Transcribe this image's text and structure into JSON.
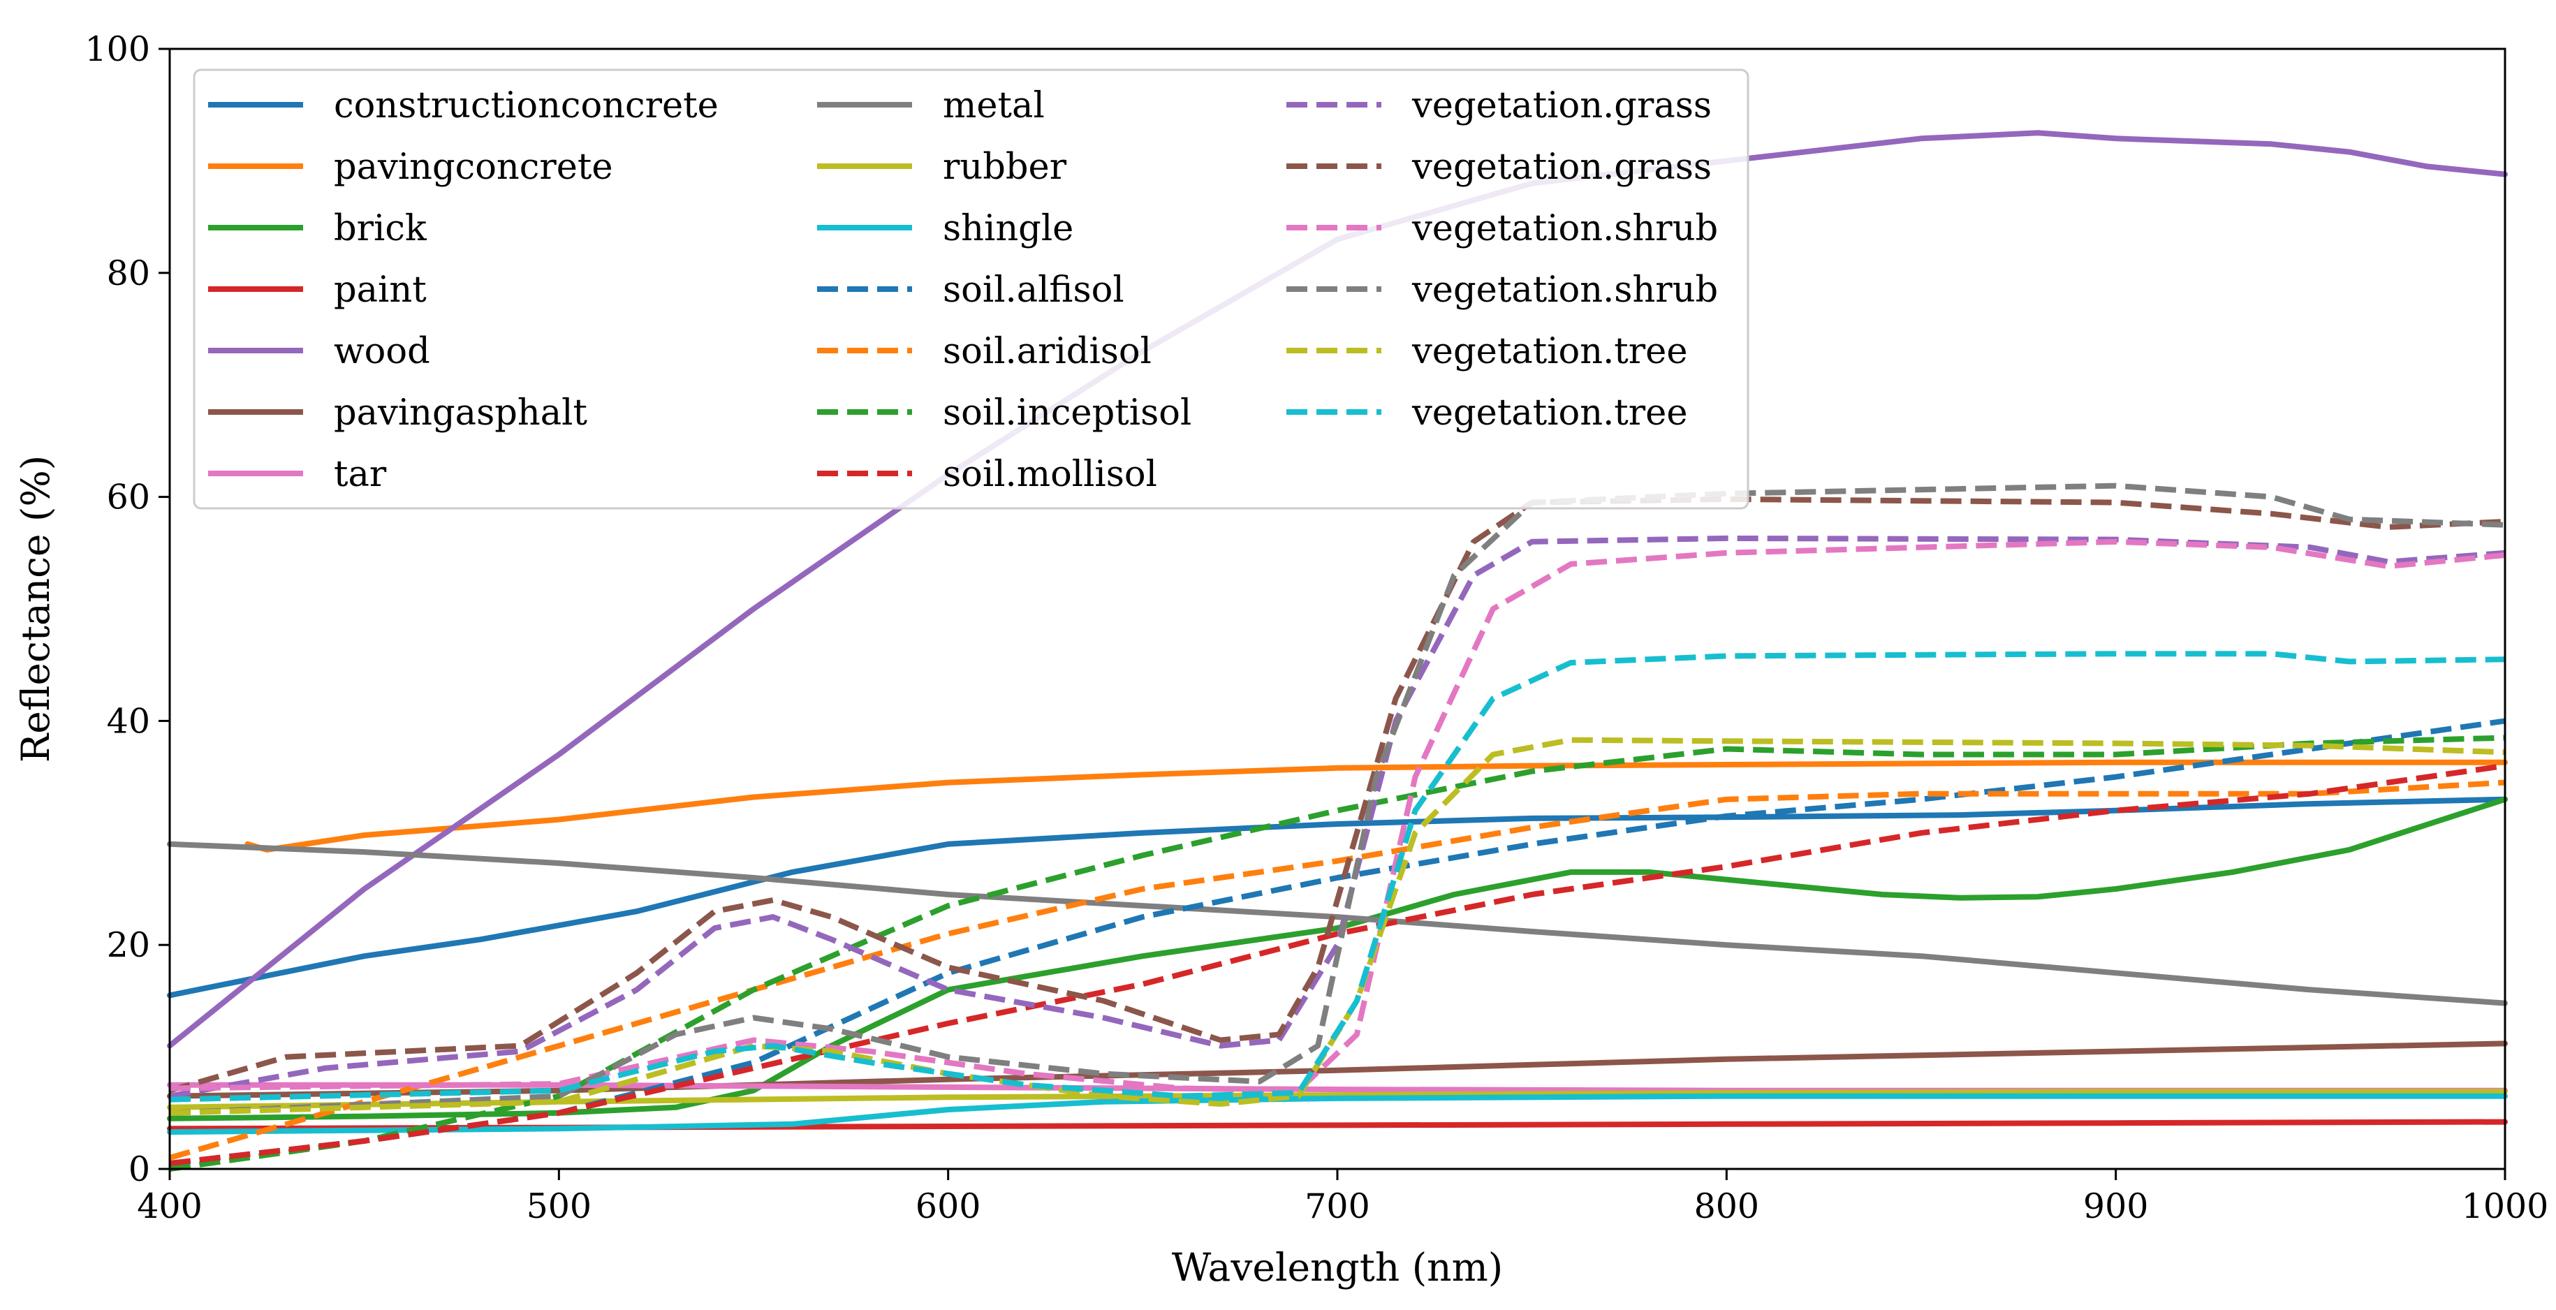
{
  "chart_data": {
    "type": "line",
    "title": "",
    "xlabel": "Wavelength (nm)",
    "ylabel": "Reflectance (%)",
    "xlim": [
      400,
      1000
    ],
    "ylim": [
      0,
      100
    ],
    "xticks": [
      400,
      500,
      600,
      700,
      800,
      900,
      1000
    ],
    "yticks": [
      0,
      20,
      40,
      60,
      80,
      100
    ],
    "grid": false,
    "legend_position": "top-left",
    "legend_columns": 3,
    "series": [
      {
        "name": "constructionconcrete",
        "color": "#1f77b4",
        "style": "solid",
        "points": [
          [
            400,
            15.5
          ],
          [
            450,
            19
          ],
          [
            480,
            20.5
          ],
          [
            520,
            23
          ],
          [
            560,
            26.5
          ],
          [
            600,
            29
          ],
          [
            650,
            30
          ],
          [
            700,
            30.8
          ],
          [
            750,
            31.3
          ],
          [
            800,
            31.4
          ],
          [
            860,
            31.6
          ],
          [
            900,
            32
          ],
          [
            950,
            32.6
          ],
          [
            1000,
            33
          ]
        ]
      },
      {
        "name": "pavingconcrete",
        "color": "#ff7f0e",
        "style": "solid",
        "points": [
          [
            420,
            29
          ],
          [
            425,
            28.5
          ],
          [
            450,
            29.8
          ],
          [
            500,
            31.2
          ],
          [
            550,
            33.2
          ],
          [
            600,
            34.5
          ],
          [
            650,
            35.2
          ],
          [
            700,
            35.8
          ],
          [
            750,
            36
          ],
          [
            800,
            36.1
          ],
          [
            900,
            36.3
          ],
          [
            1000,
            36.3
          ]
        ]
      },
      {
        "name": "brick",
        "color": "#2ca02c",
        "style": "solid",
        "points": [
          [
            400,
            4.5
          ],
          [
            450,
            4.7
          ],
          [
            500,
            5
          ],
          [
            530,
            5.5
          ],
          [
            550,
            7
          ],
          [
            570,
            11
          ],
          [
            600,
            16
          ],
          [
            650,
            19
          ],
          [
            700,
            21.5
          ],
          [
            730,
            24.5
          ],
          [
            760,
            26.5
          ],
          [
            780,
            26.5
          ],
          [
            810,
            25.5
          ],
          [
            840,
            24.5
          ],
          [
            860,
            24.2
          ],
          [
            880,
            24.3
          ],
          [
            900,
            25
          ],
          [
            930,
            26.5
          ],
          [
            960,
            28.5
          ],
          [
            1000,
            33
          ]
        ]
      },
      {
        "name": "paint",
        "color": "#d62728",
        "style": "solid",
        "points": [
          [
            400,
            3.6
          ],
          [
            500,
            3.7
          ],
          [
            600,
            3.8
          ],
          [
            700,
            3.9
          ],
          [
            800,
            4
          ],
          [
            900,
            4.1
          ],
          [
            1000,
            4.2
          ]
        ]
      },
      {
        "name": "wood",
        "color": "#9467bd",
        "style": "solid",
        "points": [
          [
            400,
            11
          ],
          [
            450,
            25
          ],
          [
            500,
            37
          ],
          [
            550,
            50
          ],
          [
            600,
            62
          ],
          [
            650,
            73
          ],
          [
            700,
            83
          ],
          [
            750,
            88
          ],
          [
            800,
            90
          ],
          [
            850,
            92
          ],
          [
            880,
            92.5
          ],
          [
            900,
            92
          ],
          [
            940,
            91.5
          ],
          [
            960,
            90.8
          ],
          [
            980,
            89.5
          ],
          [
            1000,
            88.8
          ]
        ]
      },
      {
        "name": "pavingasphalt",
        "color": "#8c564b",
        "style": "solid",
        "points": [
          [
            400,
            6.5
          ],
          [
            500,
            7
          ],
          [
            600,
            8
          ],
          [
            700,
            8.8
          ],
          [
            800,
            9.8
          ],
          [
            900,
            10.5
          ],
          [
            1000,
            11.2
          ]
        ]
      },
      {
        "name": "tar",
        "color": "#e377c2",
        "style": "solid",
        "points": [
          [
            400,
            7.5
          ],
          [
            500,
            7.5
          ],
          [
            600,
            7.3
          ],
          [
            700,
            7.1
          ],
          [
            800,
            7
          ],
          [
            900,
            7
          ],
          [
            1000,
            7
          ]
        ]
      },
      {
        "name": "metal",
        "color": "#7f7f7f",
        "style": "solid",
        "points": [
          [
            400,
            29
          ],
          [
            450,
            28.3
          ],
          [
            500,
            27.3
          ],
          [
            550,
            26
          ],
          [
            600,
            24.5
          ],
          [
            650,
            23.5
          ],
          [
            700,
            22.5
          ],
          [
            750,
            21.2
          ],
          [
            800,
            20
          ],
          [
            850,
            19
          ],
          [
            900,
            17.5
          ],
          [
            950,
            16
          ],
          [
            1000,
            14.8
          ]
        ]
      },
      {
        "name": "rubber",
        "color": "#bcbd22",
        "style": "solid",
        "points": [
          [
            400,
            5.5
          ],
          [
            500,
            6
          ],
          [
            600,
            6.4
          ],
          [
            700,
            6.6
          ],
          [
            800,
            6.8
          ],
          [
            900,
            6.9
          ],
          [
            1000,
            6.9
          ]
        ]
      },
      {
        "name": "shingle",
        "color": "#17becf",
        "style": "solid",
        "points": [
          [
            400,
            3.3
          ],
          [
            500,
            3.6
          ],
          [
            560,
            4
          ],
          [
            600,
            5.3
          ],
          [
            640,
            6
          ],
          [
            700,
            6.3
          ],
          [
            800,
            6.5
          ],
          [
            900,
            6.5
          ],
          [
            1000,
            6.5
          ]
        ]
      },
      {
        "name": "soil.alfisol",
        "color": "#1f77b4",
        "style": "dashed",
        "points": [
          [
            400,
            0.5
          ],
          [
            450,
            2.5
          ],
          [
            500,
            5
          ],
          [
            550,
            9.5
          ],
          [
            600,
            17.5
          ],
          [
            650,
            22.5
          ],
          [
            700,
            26
          ],
          [
            750,
            29
          ],
          [
            800,
            31.5
          ],
          [
            850,
            33
          ],
          [
            900,
            35
          ],
          [
            950,
            37.5
          ],
          [
            1000,
            40
          ]
        ]
      },
      {
        "name": "soil.aridisol",
        "color": "#ff7f0e",
        "style": "dashed",
        "points": [
          [
            400,
            1
          ],
          [
            450,
            6
          ],
          [
            500,
            11
          ],
          [
            550,
            16
          ],
          [
            600,
            21
          ],
          [
            650,
            25
          ],
          [
            700,
            27.5
          ],
          [
            750,
            30.5
          ],
          [
            800,
            33
          ],
          [
            850,
            33.5
          ],
          [
            900,
            33.5
          ],
          [
            950,
            33.5
          ],
          [
            1000,
            34.5
          ]
        ]
      },
      {
        "name": "soil.inceptisol",
        "color": "#2ca02c",
        "style": "dashed",
        "points": [
          [
            400,
            0
          ],
          [
            450,
            2.5
          ],
          [
            500,
            6.5
          ],
          [
            550,
            16
          ],
          [
            600,
            23.5
          ],
          [
            650,
            28
          ],
          [
            700,
            32
          ],
          [
            750,
            35.5
          ],
          [
            800,
            37.5
          ],
          [
            850,
            37
          ],
          [
            900,
            37
          ],
          [
            950,
            38
          ],
          [
            1000,
            38.5
          ]
        ]
      },
      {
        "name": "soil.mollisol",
        "color": "#d62728",
        "style": "dashed",
        "points": [
          [
            400,
            0.5
          ],
          [
            450,
            2.5
          ],
          [
            500,
            5
          ],
          [
            550,
            9
          ],
          [
            600,
            13
          ],
          [
            650,
            16.5
          ],
          [
            700,
            21
          ],
          [
            750,
            24.5
          ],
          [
            800,
            27
          ],
          [
            850,
            30
          ],
          [
            900,
            32
          ],
          [
            950,
            33.5
          ],
          [
            1000,
            36
          ]
        ]
      },
      {
        "name": "vegetation.grass",
        "color": "#9467bd",
        "style": "dashed",
        "points": [
          [
            400,
            6.5
          ],
          [
            440,
            9
          ],
          [
            490,
            10.5
          ],
          [
            520,
            16
          ],
          [
            540,
            21.5
          ],
          [
            555,
            22.5
          ],
          [
            570,
            20.5
          ],
          [
            600,
            16
          ],
          [
            640,
            13.5
          ],
          [
            670,
            11
          ],
          [
            685,
            11.5
          ],
          [
            700,
            20
          ],
          [
            715,
            40
          ],
          [
            735,
            53
          ],
          [
            750,
            56
          ],
          [
            800,
            56.3
          ],
          [
            900,
            56.2
          ],
          [
            950,
            55.5
          ],
          [
            970,
            54.2
          ],
          [
            1000,
            55
          ]
        ]
      },
      {
        "name": "vegetation.grass",
        "color": "#8c564b",
        "style": "dashed",
        "points": [
          [
            400,
            7
          ],
          [
            430,
            10
          ],
          [
            490,
            11
          ],
          [
            520,
            17.5
          ],
          [
            540,
            23
          ],
          [
            555,
            24
          ],
          [
            570,
            22.5
          ],
          [
            600,
            18
          ],
          [
            640,
            15
          ],
          [
            670,
            11.5
          ],
          [
            685,
            12
          ],
          [
            695,
            18
          ],
          [
            715,
            42
          ],
          [
            735,
            56
          ],
          [
            750,
            59.5
          ],
          [
            800,
            59.8
          ],
          [
            900,
            59.5
          ],
          [
            940,
            58.5
          ],
          [
            970,
            57.3
          ],
          [
            1000,
            57.8
          ]
        ]
      },
      {
        "name": "vegetation.shrub",
        "color": "#e377c2",
        "style": "dashed",
        "points": [
          [
            400,
            7.2
          ],
          [
            500,
            7.6
          ],
          [
            550,
            11.5
          ],
          [
            580,
            10.5
          ],
          [
            620,
            8.5
          ],
          [
            660,
            7.2
          ],
          [
            690,
            7
          ],
          [
            705,
            12
          ],
          [
            720,
            35
          ],
          [
            740,
            50
          ],
          [
            760,
            54
          ],
          [
            800,
            55
          ],
          [
            900,
            56
          ],
          [
            940,
            55.5
          ],
          [
            970,
            53.8
          ],
          [
            1000,
            54.8
          ]
        ]
      },
      {
        "name": "vegetation.shrub",
        "color": "#7f7f7f",
        "style": "dashed",
        "points": [
          [
            400,
            5
          ],
          [
            500,
            6.5
          ],
          [
            530,
            12
          ],
          [
            550,
            13.5
          ],
          [
            570,
            12.5
          ],
          [
            600,
            10
          ],
          [
            640,
            8.5
          ],
          [
            680,
            7.8
          ],
          [
            695,
            11
          ],
          [
            710,
            35
          ],
          [
            730,
            53
          ],
          [
            750,
            59.5
          ],
          [
            800,
            60.3
          ],
          [
            900,
            61
          ],
          [
            940,
            60
          ],
          [
            960,
            58
          ],
          [
            1000,
            57.5
          ]
        ]
      },
      {
        "name": "vegetation.tree",
        "color": "#bcbd22",
        "style": "dashed",
        "points": [
          [
            400,
            5
          ],
          [
            500,
            6
          ],
          [
            530,
            9
          ],
          [
            550,
            11
          ],
          [
            570,
            10.5
          ],
          [
            600,
            8.5
          ],
          [
            640,
            6.5
          ],
          [
            670,
            5.8
          ],
          [
            690,
            6.5
          ],
          [
            705,
            15
          ],
          [
            720,
            30
          ],
          [
            740,
            37
          ],
          [
            760,
            38.3
          ],
          [
            800,
            38.2
          ],
          [
            900,
            38
          ],
          [
            950,
            37.8
          ],
          [
            1000,
            37.2
          ]
        ]
      },
      {
        "name": "vegetation.tree",
        "color": "#17becf",
        "style": "dashed",
        "points": [
          [
            400,
            6.2
          ],
          [
            500,
            7
          ],
          [
            540,
            10.5
          ],
          [
            555,
            11
          ],
          [
            580,
            9.5
          ],
          [
            620,
            7.5
          ],
          [
            660,
            6.5
          ],
          [
            690,
            6.8
          ],
          [
            705,
            15
          ],
          [
            720,
            32
          ],
          [
            740,
            42
          ],
          [
            760,
            45.2
          ],
          [
            800,
            45.8
          ],
          [
            900,
            46
          ],
          [
            940,
            46
          ],
          [
            960,
            45.3
          ],
          [
            1000,
            45.5
          ]
        ]
      }
    ]
  }
}
